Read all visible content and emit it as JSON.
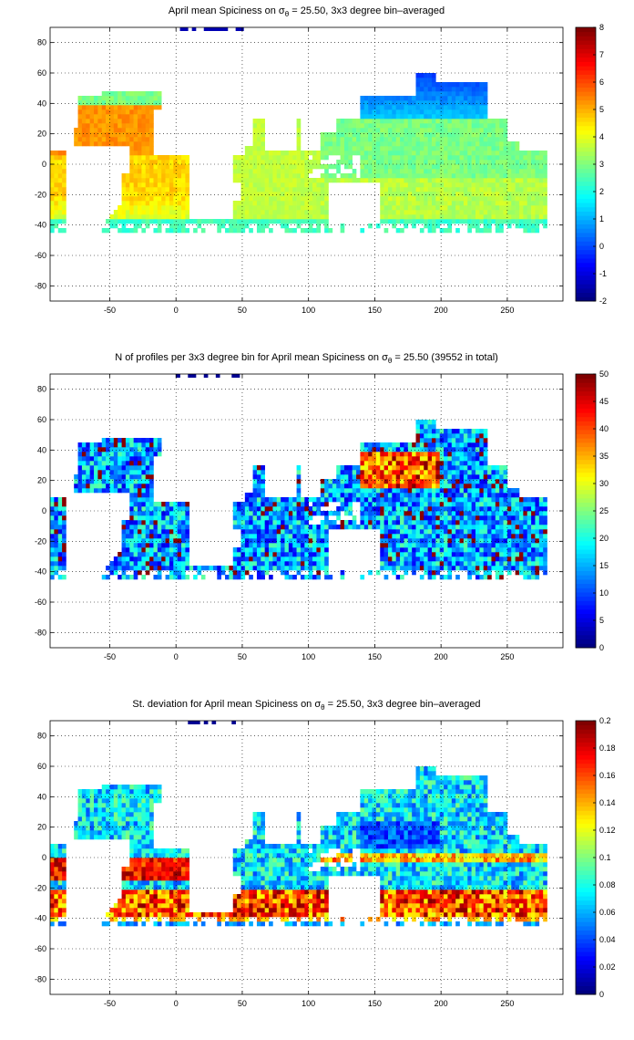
{
  "chart_data": [
    {
      "type": "heatmap",
      "title_prefix": "April mean Spiciness on σ",
      "title_sub": "θ",
      "title_suffix": " = 25.50, 3x3 degree bin–averaged",
      "xticks": [
        "-50",
        "0",
        "50",
        "100",
        "150",
        "200",
        "250"
      ],
      "yticks": [
        "80",
        "60",
        "40",
        "20",
        "0",
        "-20",
        "-40",
        "-60",
        "-80"
      ],
      "xlim": [
        -95,
        292
      ],
      "ylim": [
        -90,
        90
      ],
      "colorbar": {
        "min": -2,
        "max": 8,
        "ticks": [
          "8",
          "7",
          "6",
          "5",
          "4",
          "3",
          "2",
          "1",
          "0",
          "-1",
          "-2"
        ]
      },
      "colormap": "jet",
      "grid": true,
      "field": "spiciness"
    },
    {
      "type": "heatmap",
      "title_prefix": "N of profiles per 3x3 degree bin for April mean Spiciness on σ",
      "title_sub": "θ",
      "title_suffix": " = 25.50 (39552 in total)",
      "xticks": [
        "-50",
        "0",
        "50",
        "100",
        "150",
        "200",
        "250"
      ],
      "yticks": [
        "80",
        "60",
        "40",
        "20",
        "0",
        "-20",
        "-40",
        "-60",
        "-80"
      ],
      "xlim": [
        -95,
        292
      ],
      "ylim": [
        -90,
        90
      ],
      "colorbar": {
        "min": 0,
        "max": 50,
        "ticks": [
          "50",
          "45",
          "40",
          "35",
          "30",
          "25",
          "20",
          "15",
          "10",
          "5",
          "0"
        ]
      },
      "colormap": "jet",
      "grid": true,
      "field": "count"
    },
    {
      "type": "heatmap",
      "title_prefix": "St. deviation for April mean Spiciness on σ",
      "title_sub": "θ",
      "title_suffix": " = 25.50, 3x3 degree bin–averaged",
      "xticks": [
        "-50",
        "0",
        "50",
        "100",
        "150",
        "200",
        "250"
      ],
      "yticks": [
        "80",
        "60",
        "40",
        "20",
        "0",
        "-20",
        "-40",
        "-60",
        "-80"
      ],
      "xlim": [
        -95,
        292
      ],
      "ylim": [
        -90,
        90
      ],
      "colorbar": {
        "min": 0,
        "max": 0.2,
        "ticks": [
          "0.2",
          "0.18",
          "0.16",
          "0.14",
          "0.12",
          "0.1",
          "0.08",
          "0.06",
          "0.04",
          "0.02",
          "0"
        ]
      },
      "colormap": "jet",
      "grid": true,
      "field": "stdev"
    }
  ]
}
